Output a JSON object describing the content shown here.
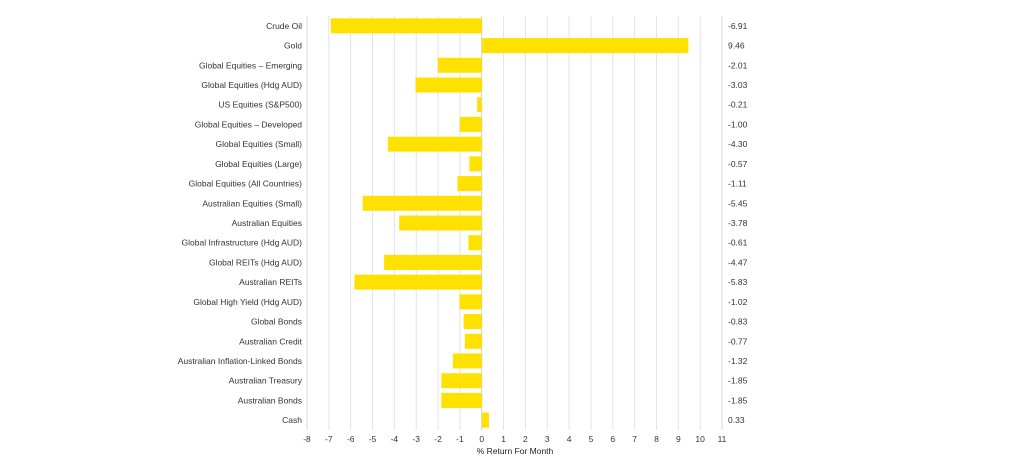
{
  "chart_data": {
    "type": "bar",
    "orientation": "horizontal",
    "categories": [
      "Crude Oil",
      "Gold",
      "Global Equities – Emerging",
      "Global Equities (Hdg AUD)",
      "US Equities (S&P500)",
      "Global Equities – Developed",
      "Global Equities (Small)",
      "Global Equities (Large)",
      "Global Equities (All Countries)",
      "Australian Equities (Small)",
      "Australian Equities",
      "Global Infrastructure (Hdg AUD)",
      "Global REITs (Hdg AUD)",
      "Australian REITs",
      "Global High Yield (Hdg AUD)",
      "Global Bonds",
      "Australian Credit",
      "Australian Inflation-Linked Bonds",
      "Australian Treasury",
      "Australian Bonds",
      "Cash"
    ],
    "values": [
      -6.91,
      9.46,
      -2.01,
      -3.03,
      -0.21,
      -1.0,
      -4.3,
      -0.57,
      -1.11,
      -5.45,
      -3.78,
      -0.61,
      -4.47,
      -5.83,
      -1.02,
      -0.83,
      -0.77,
      -1.32,
      -1.85,
      -1.85,
      0.33
    ],
    "value_labels": [
      "-6.91",
      "9.46",
      "-2.01",
      "-3.03",
      "-0.21",
      "-1.00",
      "-4.30",
      "-0.57",
      "-1.11",
      "-5.45",
      "-3.78",
      "-0.61",
      "-4.47",
      "-5.83",
      "-1.02",
      "-0.83",
      "-0.77",
      "-1.32",
      "-1.85",
      "-1.85",
      "0.33"
    ],
    "xlabel": "% Return For Month",
    "xlim": [
      -8,
      11
    ],
    "xticks": [
      "-8",
      "-7",
      "-6",
      "-5",
      "-4",
      "-3",
      "-2",
      "-1",
      "0",
      "1",
      "2",
      "3",
      "4",
      "5",
      "6",
      "7",
      "8",
      "9",
      "10",
      "11"
    ],
    "grid": "vertical",
    "legend": "none",
    "bar_color": "#FFE100"
  }
}
